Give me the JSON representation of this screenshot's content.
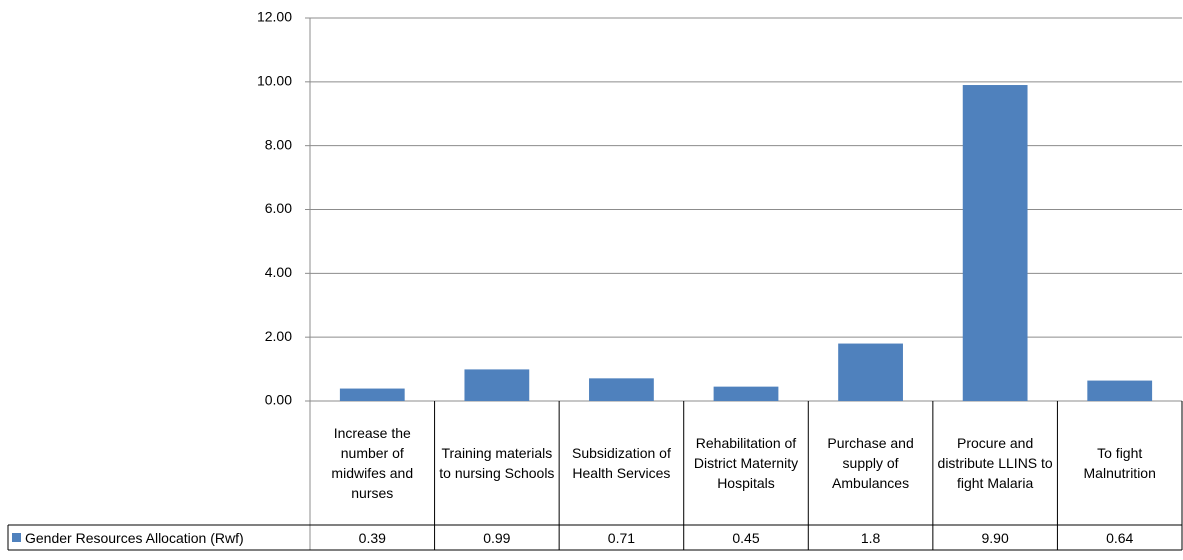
{
  "chart_data": {
    "type": "bar",
    "categories": [
      "Increase the number of midwifes and nurses",
      "Training materials to nursing Schools",
      "Subsidization of Health Services",
      "Rehabilitation of District Maternity Hospitals",
      "Purchase and supply of Ambulances",
      "Procure and distribute LLINS to fight Malaria",
      "To fight Malnutrition"
    ],
    "series": [
      {
        "name": "Gender Resources Allocation (Rwf)",
        "color": "#4f81bd",
        "values": [
          0.39,
          0.99,
          0.71,
          0.45,
          1.8,
          9.9,
          0.64
        ],
        "value_labels": [
          "0.39",
          "0.99",
          "0.71",
          "0.45",
          "1.8",
          "9.90",
          "0.64"
        ]
      }
    ],
    "ylim": [
      0,
      12
    ],
    "yticks": [
      {
        "value": 0,
        "label": "0.00"
      },
      {
        "value": 2,
        "label": "2.00"
      },
      {
        "value": 4,
        "label": "4.00"
      },
      {
        "value": 6,
        "label": "6.00"
      },
      {
        "value": 8,
        "label": "8.00"
      },
      {
        "value": 10,
        "label": "10.00"
      },
      {
        "value": 12,
        "label": "12.00"
      }
    ],
    "grid": true
  }
}
